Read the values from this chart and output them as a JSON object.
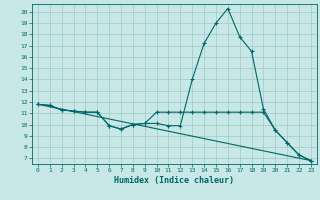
{
  "xlabel": "Humidex (Indice chaleur)",
  "bg_color": "#c8e8e8",
  "line_color": "#006666",
  "grid_color": "#a0c8c8",
  "ylim": [
    6.5,
    20.7
  ],
  "xlim": [
    -0.5,
    23.5
  ],
  "yticks": [
    7,
    8,
    9,
    10,
    11,
    12,
    13,
    14,
    15,
    16,
    17,
    18,
    19,
    20
  ],
  "xticks": [
    0,
    1,
    2,
    3,
    4,
    5,
    6,
    7,
    8,
    9,
    10,
    11,
    12,
    13,
    14,
    15,
    16,
    17,
    18,
    19,
    20,
    21,
    22,
    23
  ],
  "line1_x": [
    0,
    1,
    2,
    3,
    4,
    5,
    6,
    7,
    8,
    9,
    10,
    11,
    12,
    13,
    14,
    15,
    16,
    17,
    18,
    19,
    20,
    21,
    22,
    23
  ],
  "line1_y": [
    11.8,
    11.7,
    11.3,
    11.2,
    11.1,
    11.1,
    9.9,
    9.6,
    10.0,
    10.1,
    10.1,
    9.9,
    9.9,
    14.0,
    17.2,
    19.0,
    20.3,
    17.8,
    16.5,
    11.4,
    9.5,
    8.4,
    7.3,
    6.8
  ],
  "line2_x": [
    0,
    1,
    2,
    3,
    4,
    5,
    6,
    7,
    8,
    9,
    10,
    11,
    12,
    13,
    14,
    15,
    16,
    17,
    18,
    19,
    20,
    21,
    22,
    23
  ],
  "line2_y": [
    11.8,
    11.7,
    11.3,
    11.2,
    11.1,
    11.1,
    9.9,
    9.6,
    10.0,
    10.1,
    11.1,
    11.1,
    11.1,
    11.1,
    11.1,
    11.1,
    11.1,
    11.1,
    11.1,
    11.1,
    9.5,
    8.4,
    7.3,
    6.8
  ],
  "line3_x": [
    0,
    23
  ],
  "line3_y": [
    11.8,
    6.8
  ]
}
